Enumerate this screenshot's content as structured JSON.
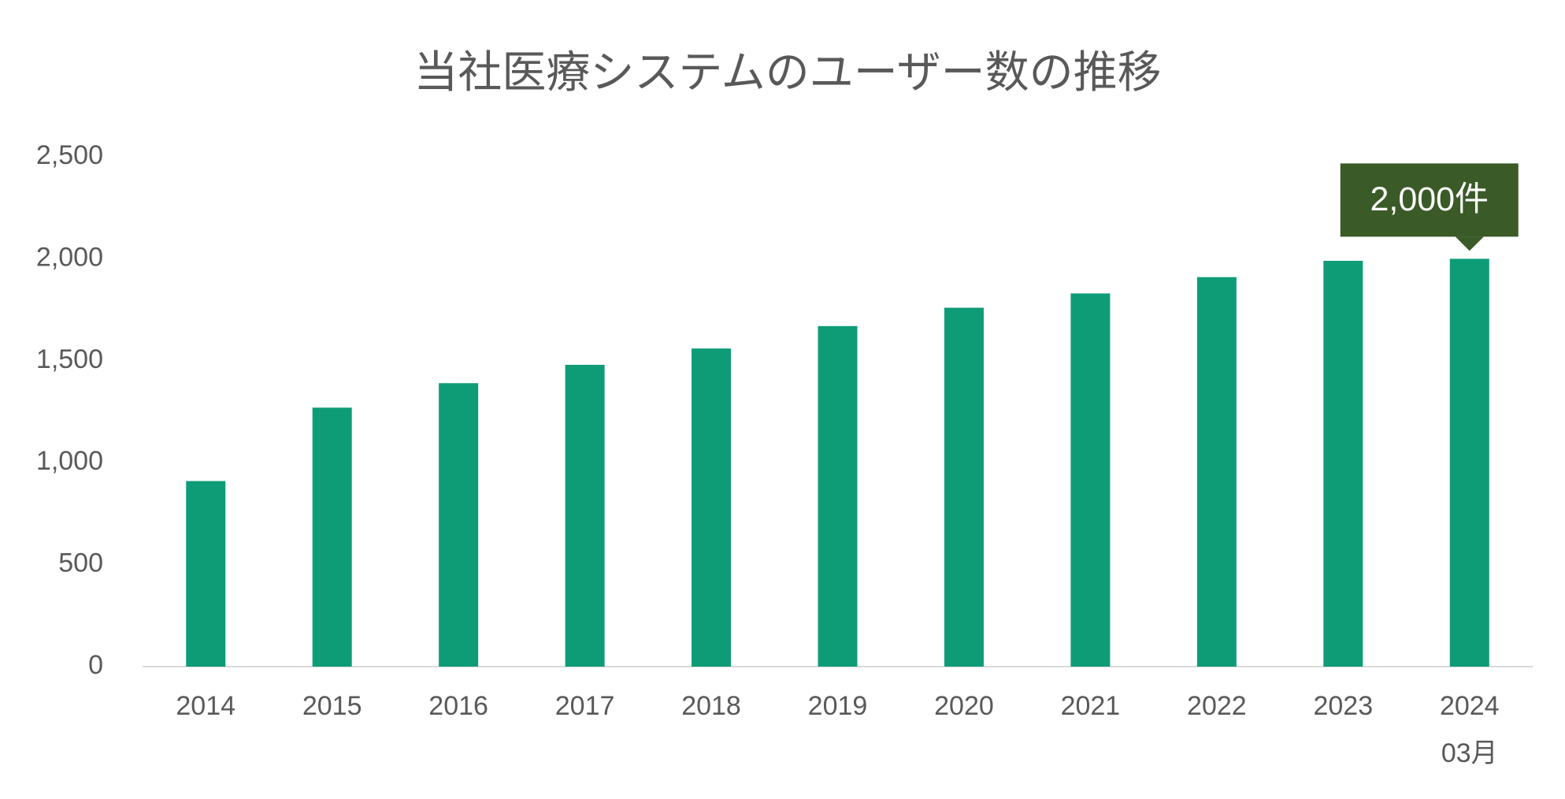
{
  "chart_data": {
    "type": "bar",
    "title": "当社医療システムのユーザー数の推移",
    "categories": [
      "2014",
      "2015",
      "2016",
      "2017",
      "2018",
      "2019",
      "2020",
      "2021",
      "2022",
      "2023",
      "2024\n03月"
    ],
    "values": [
      910,
      1270,
      1390,
      1480,
      1560,
      1670,
      1760,
      1830,
      1910,
      1990,
      2000
    ],
    "value_labels": [
      null,
      null,
      null,
      null,
      null,
      null,
      null,
      null,
      null,
      null,
      "2,000件"
    ],
    "color": "#0e9c77",
    "label_color": "#3a5a27",
    "ylim": [
      0,
      2500
    ],
    "yticks": [
      0,
      {
        "value": 500,
        "label": "500"
      },
      {
        "value": 1000,
        "label": "1,000"
      },
      {
        "value": 1500,
        "label": "1,500"
      },
      {
        "value": 2000,
        "label": "2,000"
      },
      {
        "value": 2500,
        "label": "2,500"
      }
    ],
    "grid": false
  }
}
